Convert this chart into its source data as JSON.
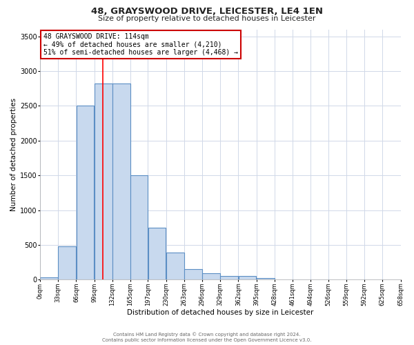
{
  "title1": "48, GRAYSWOOD DRIVE, LEICESTER, LE4 1EN",
  "title2": "Size of property relative to detached houses in Leicester",
  "xlabel": "Distribution of detached houses by size in Leicester",
  "ylabel": "Number of detached properties",
  "bar_labels": [
    "0sqm",
    "33sqm",
    "66sqm",
    "99sqm",
    "132sqm",
    "165sqm",
    "197sqm",
    "230sqm",
    "263sqm",
    "296sqm",
    "329sqm",
    "362sqm",
    "395sqm",
    "428sqm",
    "461sqm",
    "494sqm",
    "526sqm",
    "559sqm",
    "592sqm",
    "625sqm",
    "658sqm"
  ],
  "bin_edges": [
    0,
    33,
    66,
    99,
    132,
    165,
    197,
    230,
    263,
    296,
    329,
    362,
    395,
    428,
    461,
    494,
    526,
    559,
    592,
    625,
    658
  ],
  "bar_heights": [
    30,
    480,
    2500,
    2820,
    2820,
    1500,
    750,
    390,
    150,
    90,
    55,
    55,
    25,
    0,
    0,
    0,
    0,
    0,
    0,
    0
  ],
  "bar_color": "#c8d9ee",
  "bar_edge_color": "#5b8ec4",
  "red_line_x": 114,
  "ylim": [
    0,
    3600
  ],
  "yticks": [
    0,
    500,
    1000,
    1500,
    2000,
    2500,
    3000,
    3500
  ],
  "annotation_title": "48 GRAYSWOOD DRIVE: 114sqm",
  "annotation_line1": "← 49% of detached houses are smaller (4,210)",
  "annotation_line2": "51% of semi-detached houses are larger (4,468) →",
  "annotation_box_color": "#ffffff",
  "annotation_box_edge": "#cc0000",
  "plot_bg_color": "#ffffff",
  "fig_bg_color": "#ffffff",
  "grid_color": "#d0d8e8",
  "footer1": "Contains HM Land Registry data © Crown copyright and database right 2024.",
  "footer2": "Contains public sector information licensed under the Open Government Licence v3.0."
}
